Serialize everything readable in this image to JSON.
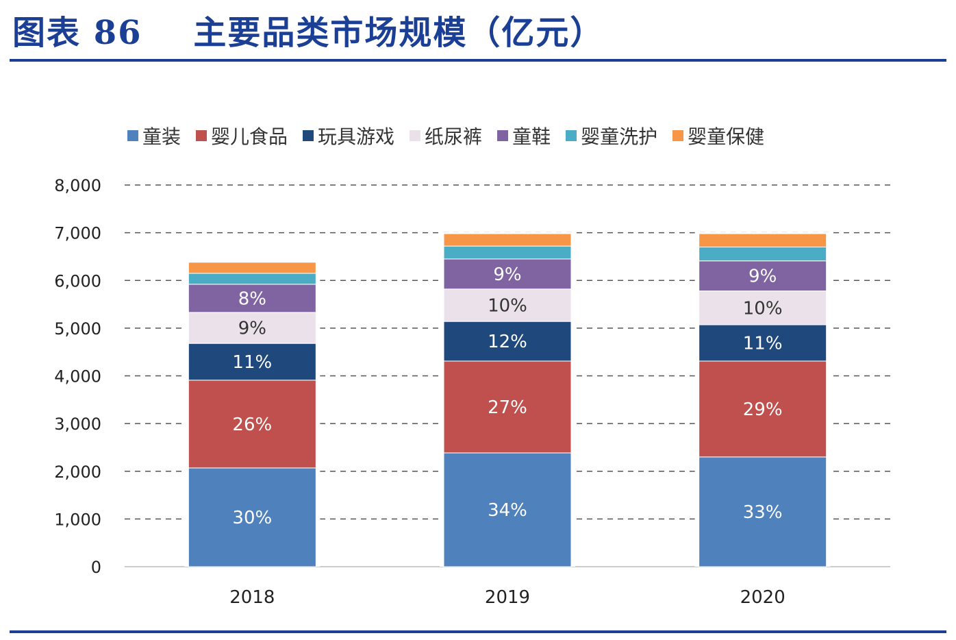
{
  "title": "图表 86    主要品类市场规模（亿元）",
  "chart_data": {
    "type": "bar",
    "stacked": true,
    "title": "",
    "xlabel": "",
    "ylabel": "",
    "categories": [
      "2018",
      "2019",
      "2020"
    ],
    "ylim": [
      0,
      8000
    ],
    "yticks": [
      "0",
      "1,000",
      "2,000",
      "3,000",
      "4,000",
      "5,000",
      "6,000",
      "7,000",
      "8,000"
    ],
    "grid": true,
    "legend_position": "top",
    "series": [
      {
        "name": "童装",
        "color": "#4f81bd",
        "values": [
          2070,
          2385,
          2300
        ],
        "labels": [
          "30%",
          "34%",
          "33%"
        ],
        "label_color": "#ffffff"
      },
      {
        "name": "婴儿食品",
        "color": "#c0504d",
        "values": [
          1840,
          1925,
          2010
        ],
        "labels": [
          "26%",
          "27%",
          "29%"
        ],
        "label_color": "#ffffff"
      },
      {
        "name": "玩具游戏",
        "color": "#1f497d",
        "values": [
          770,
          830,
          760
        ],
        "labels": [
          "11%",
          "12%",
          "11%"
        ],
        "label_color": "#ffffff"
      },
      {
        "name": "纸尿裤",
        "color": "#ebe1ea",
        "values": [
          650,
          680,
          710
        ],
        "labels": [
          "9%",
          "10%",
          "10%"
        ],
        "label_color": "#333333"
      },
      {
        "name": "童鞋",
        "color": "#8064a2",
        "values": [
          590,
          630,
          630
        ],
        "labels": [
          "8%",
          "9%",
          "9%"
        ],
        "label_color": "#ffffff"
      },
      {
        "name": "婴童洗护",
        "color": "#4bacc6",
        "values": [
          230,
          270,
          290
        ],
        "labels": [
          "",
          "",
          ""
        ],
        "label_color": "#ffffff"
      },
      {
        "name": "婴童保健",
        "color": "#f79646",
        "values": [
          230,
          260,
          280
        ],
        "labels": [
          "",
          "",
          ""
        ],
        "label_color": "#ffffff"
      }
    ]
  }
}
